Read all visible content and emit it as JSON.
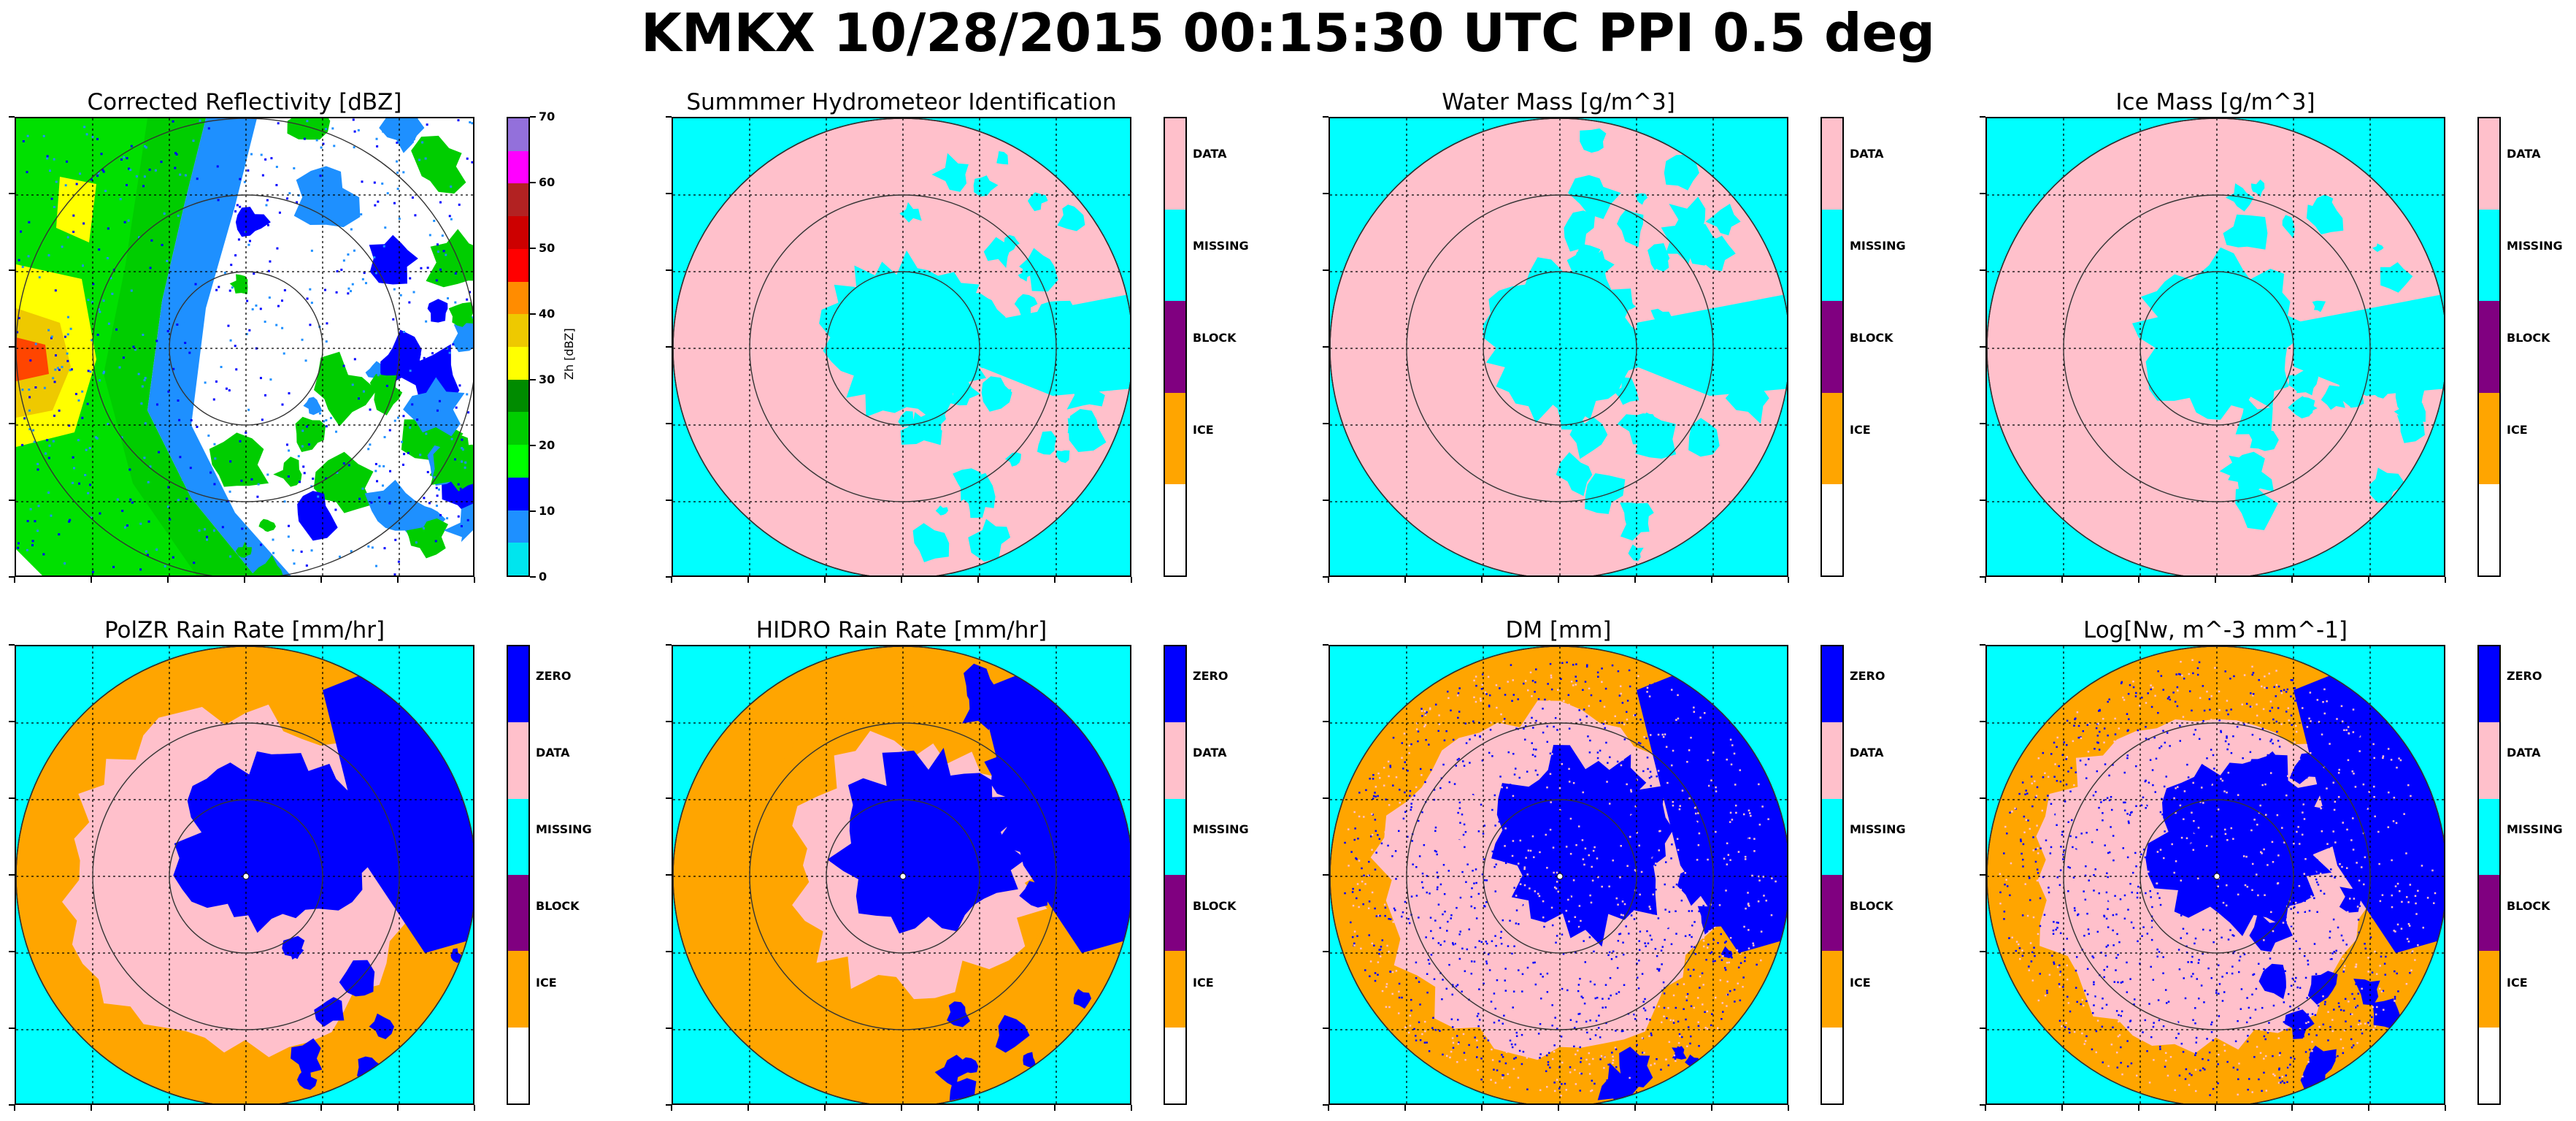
{
  "title": "KMKX 10/28/2015 00:15:30 UTC PPI 0.5 deg",
  "colors": {
    "zero": "#0000ff",
    "data": "#ffc0cb",
    "missing": "#00ffff",
    "block": "#800080",
    "ice": "#ffa500",
    "blank": "#ffffff"
  },
  "chart_data": [
    {
      "type": "heatmap",
      "title": "Corrected Reflectivity [dBZ]",
      "colorbar": {
        "label": "Zh [dBZ]",
        "ticks": [
          "0",
          "10",
          "20",
          "30",
          "40",
          "50",
          "60",
          "70"
        ],
        "colors": [
          "#00e5ee",
          "#1e90ff",
          "#0000ff",
          "#00ff00",
          "#00cd00",
          "#008b00",
          "#ffff00",
          "#eec900",
          "#ff8c00",
          "#ff0000",
          "#cd0000",
          "#b22222",
          "#ff00ff",
          "#9370db"
        ]
      }
    },
    {
      "type": "heatmap",
      "title": "Summmer Hydrometeor Identification",
      "colorbar": {
        "categories": [
          "DATA",
          "MISSING",
          "BLOCK",
          "ICE",
          ""
        ]
      }
    },
    {
      "type": "heatmap",
      "title": "Water Mass [g/m^3]",
      "colorbar": {
        "categories": [
          "DATA",
          "MISSING",
          "BLOCK",
          "ICE",
          ""
        ]
      }
    },
    {
      "type": "heatmap",
      "title": "Ice Mass [g/m^3]",
      "colorbar": {
        "categories": [
          "DATA",
          "MISSING",
          "BLOCK",
          "ICE",
          ""
        ]
      }
    },
    {
      "type": "heatmap",
      "title": "PolZR Rain Rate [mm/hr]",
      "colorbar": {
        "categories": [
          "ZERO",
          "DATA",
          "MISSING",
          "BLOCK",
          "ICE",
          ""
        ]
      }
    },
    {
      "type": "heatmap",
      "title": "HIDRO Rain Rate [mm/hr]",
      "colorbar": {
        "categories": [
          "ZERO",
          "DATA",
          "MISSING",
          "BLOCK",
          "ICE",
          ""
        ]
      }
    },
    {
      "type": "heatmap",
      "title": "DM [mm]",
      "colorbar": {
        "categories": [
          "ZERO",
          "DATA",
          "MISSING",
          "BLOCK",
          "ICE",
          ""
        ]
      }
    },
    {
      "type": "heatmap",
      "title": "Log[Nw, m^-3 mm^-1]",
      "colorbar": {
        "categories": [
          "ZERO",
          "DATA",
          "MISSING",
          "BLOCK",
          "ICE",
          ""
        ]
      }
    }
  ]
}
